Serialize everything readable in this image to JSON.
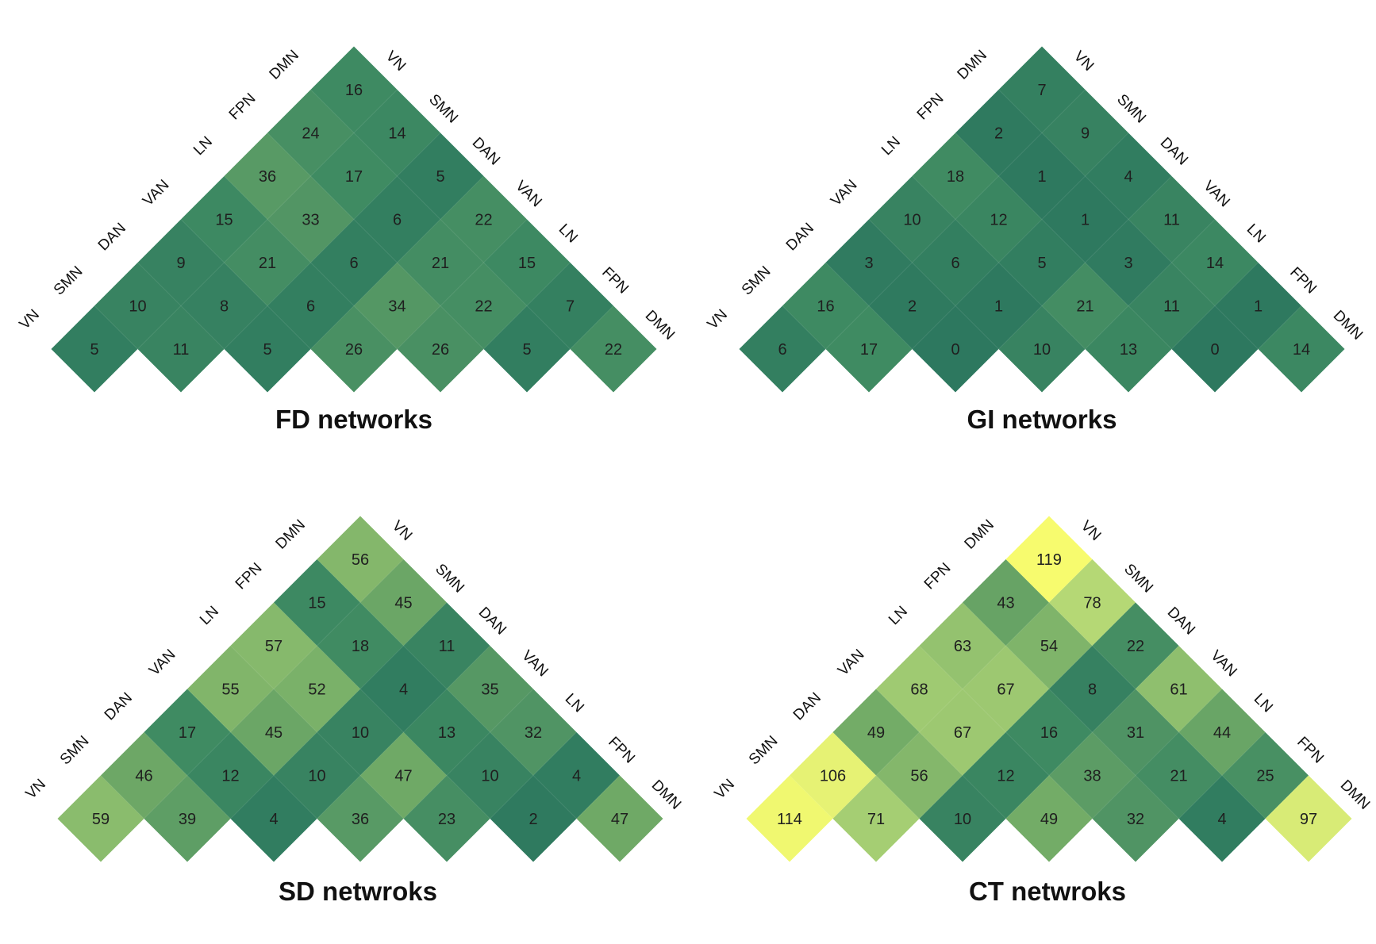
{
  "colors": {
    "low": "#2e7a5f",
    "high": "#f6fb6e",
    "text": "#1f1f1f"
  },
  "chart_data": [
    {
      "type": "heatmap",
      "title": "FD networks",
      "labels": [
        "VN",
        "SMN",
        "DAN",
        "VAN",
        "LN",
        "FPN",
        "DMN"
      ],
      "values": [
        [
          5
        ],
        [
          10,
          11
        ],
        [
          9,
          8,
          5
        ],
        [
          15,
          21,
          6,
          26
        ],
        [
          36,
          33,
          6,
          34,
          26
        ],
        [
          24,
          17,
          6,
          21,
          22,
          5
        ],
        [
          16,
          14,
          5,
          22,
          15,
          7,
          22
        ]
      ]
    },
    {
      "type": "heatmap",
      "title": "GI networks",
      "labels": [
        "VN",
        "SMN",
        "DAN",
        "VAN",
        "LN",
        "FPN",
        "DMN"
      ],
      "values": [
        [
          6
        ],
        [
          16,
          17
        ],
        [
          3,
          2,
          0
        ],
        [
          10,
          6,
          1,
          10
        ],
        [
          18,
          12,
          5,
          21,
          13
        ],
        [
          2,
          1,
          1,
          3,
          11,
          0
        ],
        [
          7,
          9,
          4,
          11,
          14,
          1,
          14
        ]
      ]
    },
    {
      "type": "heatmap",
      "title": "SD netwroks",
      "labels": [
        "VN",
        "SMN",
        "DAN",
        "VAN",
        "LN",
        "FPN",
        "DMN"
      ],
      "values": [
        [
          59
        ],
        [
          46,
          39
        ],
        [
          17,
          12,
          4
        ],
        [
          55,
          45,
          10,
          36
        ],
        [
          57,
          52,
          10,
          47,
          23
        ],
        [
          15,
          18,
          4,
          13,
          10,
          2
        ],
        [
          56,
          45,
          11,
          35,
          32,
          4,
          47
        ]
      ]
    },
    {
      "type": "heatmap",
      "title": "CT netwroks",
      "labels": [
        "VN",
        "SMN",
        "DAN",
        "VAN",
        "LN",
        "FPN",
        "DMN"
      ],
      "values": [
        [
          114
        ],
        [
          106,
          71
        ],
        [
          49,
          56,
          10
        ],
        [
          68,
          67,
          12,
          49
        ],
        [
          63,
          67,
          16,
          38,
          32
        ],
        [
          43,
          54,
          8,
          31,
          21,
          4
        ],
        [
          119,
          78,
          22,
          61,
          44,
          25,
          97
        ]
      ]
    }
  ]
}
